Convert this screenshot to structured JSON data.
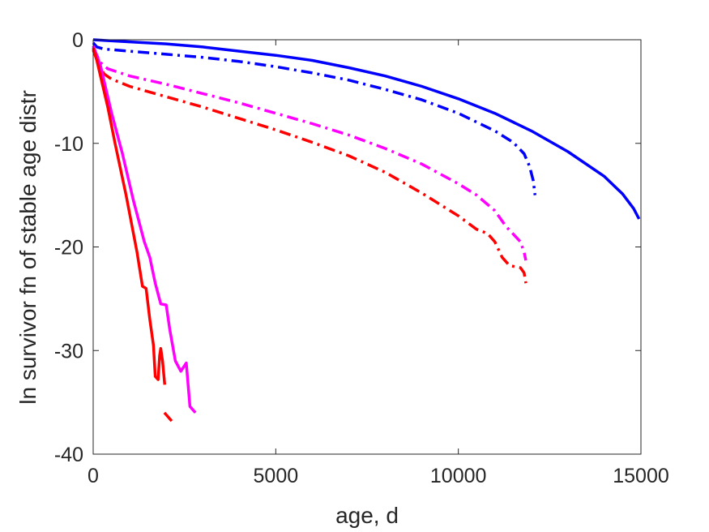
{
  "chart_data": {
    "type": "line",
    "title": "",
    "xlabel": "age, d",
    "ylabel": "ln survivor fn of stable age distr",
    "xlim": [
      0,
      15000
    ],
    "ylim": [
      -40,
      0
    ],
    "x_ticks": [
      0,
      5000,
      10000,
      15000
    ],
    "x_tick_labels": [
      "0",
      "5000",
      "10000",
      "15000"
    ],
    "y_ticks": [
      0,
      -10,
      -20,
      -30,
      -40
    ],
    "y_tick_labels": [
      "0",
      "-10",
      "-20",
      "-30",
      "-40"
    ],
    "grid": false,
    "legend": "none",
    "series": [
      {
        "color": "#0000ff",
        "style": "solid",
        "points": [
          [
            0,
            0
          ],
          [
            1000,
            -0.2
          ],
          [
            2000,
            -0.4
          ],
          [
            3000,
            -0.7
          ],
          [
            4000,
            -1.1
          ],
          [
            5000,
            -1.5
          ],
          [
            6000,
            -2.0
          ],
          [
            7000,
            -2.7
          ],
          [
            8000,
            -3.5
          ],
          [
            9000,
            -4.5
          ],
          [
            10000,
            -5.7
          ],
          [
            11000,
            -7.1
          ],
          [
            12000,
            -8.8
          ],
          [
            13000,
            -10.8
          ],
          [
            14000,
            -13.2
          ],
          [
            14500,
            -14.9
          ],
          [
            14800,
            -16.3
          ],
          [
            14950,
            -17.3
          ]
        ]
      },
      {
        "color": "#0000ff",
        "style": "dashdot",
        "points": [
          [
            0,
            -0.3
          ],
          [
            100,
            -0.7
          ],
          [
            300,
            -0.9
          ],
          [
            1000,
            -1.1
          ],
          [
            2000,
            -1.4
          ],
          [
            3000,
            -1.7
          ],
          [
            4000,
            -2.1
          ],
          [
            5000,
            -2.6
          ],
          [
            6000,
            -3.2
          ],
          [
            7000,
            -3.9
          ],
          [
            8000,
            -4.8
          ],
          [
            9000,
            -5.8
          ],
          [
            10000,
            -7.1
          ],
          [
            11000,
            -8.8
          ],
          [
            11500,
            -9.9
          ],
          [
            11800,
            -11.0
          ],
          [
            11950,
            -12.2
          ],
          [
            12050,
            -13.6
          ],
          [
            12100,
            -15.0
          ]
        ]
      },
      {
        "color": "#ff00ff",
        "style": "dashdot",
        "points": [
          [
            0,
            -0.8
          ],
          [
            100,
            -1.5
          ],
          [
            200,
            -2.2
          ],
          [
            400,
            -2.8
          ],
          [
            1000,
            -3.5
          ],
          [
            2000,
            -4.3
          ],
          [
            3000,
            -5.2
          ],
          [
            4000,
            -6.1
          ],
          [
            5000,
            -7.1
          ],
          [
            6000,
            -8.1
          ],
          [
            7000,
            -9.2
          ],
          [
            8000,
            -10.5
          ],
          [
            9000,
            -12.0
          ],
          [
            10000,
            -13.9
          ],
          [
            10500,
            -15.0
          ],
          [
            11000,
            -16.5
          ],
          [
            11300,
            -18.0
          ],
          [
            11700,
            -19.5
          ],
          [
            11800,
            -20.5
          ],
          [
            11850,
            -21.3
          ]
        ]
      },
      {
        "color": "#ff0000",
        "style": "dashdot",
        "points": [
          [
            0,
            -1.0
          ],
          [
            150,
            -2.4
          ],
          [
            300,
            -3.3
          ],
          [
            500,
            -3.8
          ],
          [
            1000,
            -4.5
          ],
          [
            2000,
            -5.5
          ],
          [
            3000,
            -6.5
          ],
          [
            4000,
            -7.6
          ],
          [
            5000,
            -8.7
          ],
          [
            6000,
            -9.9
          ],
          [
            7000,
            -11.2
          ],
          [
            8000,
            -12.8
          ],
          [
            9000,
            -14.8
          ],
          [
            10000,
            -17.0
          ],
          [
            10500,
            -18.3
          ],
          [
            10800,
            -18.7
          ],
          [
            11000,
            -19.5
          ],
          [
            11200,
            -21.0
          ],
          [
            11400,
            -21.8
          ],
          [
            11700,
            -22.0
          ],
          [
            11800,
            -22.5
          ],
          [
            11850,
            -23.5
          ]
        ]
      },
      {
        "color": "#ff0000",
        "style": "dashdot",
        "points": [
          [
            1950,
            -36.0
          ],
          [
            2050,
            -36.4
          ],
          [
            2150,
            -36.8
          ]
        ]
      },
      {
        "color": "#ff00ff",
        "style": "solid",
        "points": [
          [
            0,
            -0.6
          ],
          [
            100,
            -1.5
          ],
          [
            200,
            -2.5
          ],
          [
            300,
            -4.0
          ],
          [
            500,
            -7.0
          ],
          [
            800,
            -11.0
          ],
          [
            1100,
            -15.5
          ],
          [
            1400,
            -19.5
          ],
          [
            1550,
            -21.0
          ],
          [
            1700,
            -23.5
          ],
          [
            1850,
            -25.5
          ],
          [
            2000,
            -25.6
          ],
          [
            2100,
            -28.0
          ],
          [
            2250,
            -31.0
          ],
          [
            2400,
            -32.0
          ],
          [
            2550,
            -31.2
          ],
          [
            2650,
            -35.4
          ],
          [
            2800,
            -36.0
          ]
        ]
      },
      {
        "color": "#ff0000",
        "style": "solid",
        "points": [
          [
            0,
            -0.8
          ],
          [
            100,
            -2.0
          ],
          [
            200,
            -3.5
          ],
          [
            400,
            -6.5
          ],
          [
            600,
            -10.0
          ],
          [
            900,
            -15.0
          ],
          [
            1200,
            -20.5
          ],
          [
            1350,
            -23.8
          ],
          [
            1450,
            -24.0
          ],
          [
            1550,
            -27.0
          ],
          [
            1650,
            -29.5
          ],
          [
            1700,
            -32.5
          ],
          [
            1780,
            -32.8
          ],
          [
            1820,
            -30.5
          ],
          [
            1850,
            -29.8
          ],
          [
            1900,
            -31.0
          ],
          [
            1960,
            -33.3
          ]
        ]
      }
    ]
  }
}
